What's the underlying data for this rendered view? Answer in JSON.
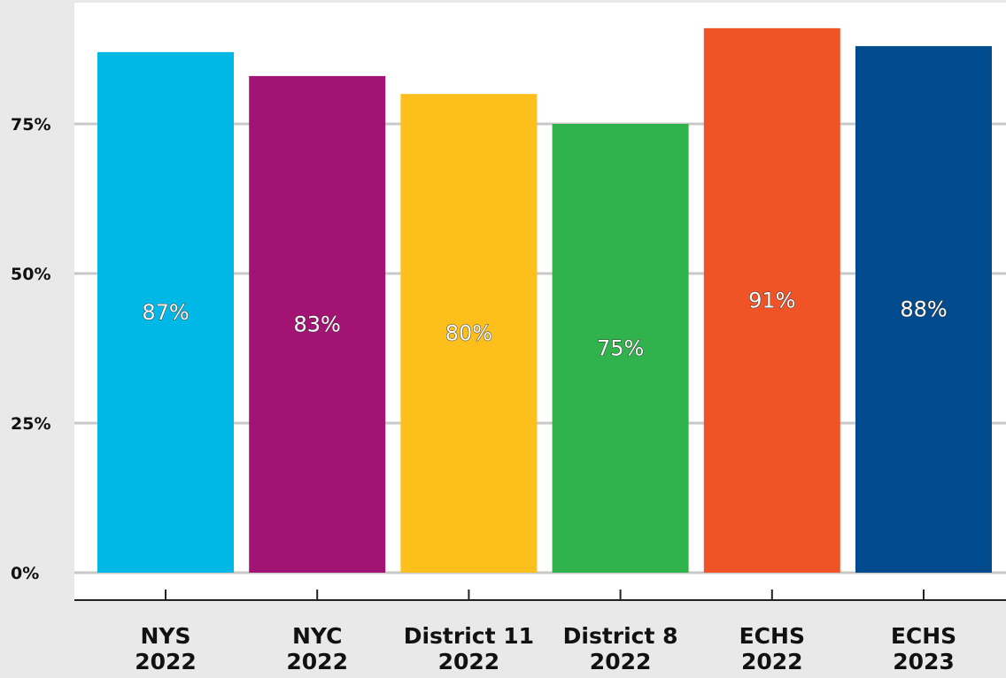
{
  "chart_data": {
    "type": "bar",
    "categories": [
      [
        "NYS",
        "2022"
      ],
      [
        "NYC",
        "2022"
      ],
      [
        "District 11",
        "2022"
      ],
      [
        "District 8",
        "2022"
      ],
      [
        "ECHS",
        "2022"
      ],
      [
        "ECHS",
        "2023"
      ]
    ],
    "values": [
      87,
      83,
      80,
      75,
      91,
      88
    ],
    "data_labels": [
      "87%",
      "83%",
      "80%",
      "75%",
      "91%",
      "88%"
    ],
    "colors": [
      "#00b8e6",
      "#a21373",
      "#fcbf1c",
      "#30b24c",
      "#ef5326",
      "#004b8d"
    ],
    "yticks": [
      {
        "value": 0,
        "label": "0%"
      },
      {
        "value": 25,
        "label": "25%"
      },
      {
        "value": 50,
        "label": "50%"
      },
      {
        "value": 75,
        "label": "75%"
      }
    ],
    "ylim": [
      0,
      100
    ],
    "title": "",
    "xlabel": "",
    "ylabel": "",
    "grid": true,
    "legend": "none",
    "plot_background": "#ffffff",
    "page_background": "#e9e9e9",
    "grid_color": "#c8c8c8"
  }
}
